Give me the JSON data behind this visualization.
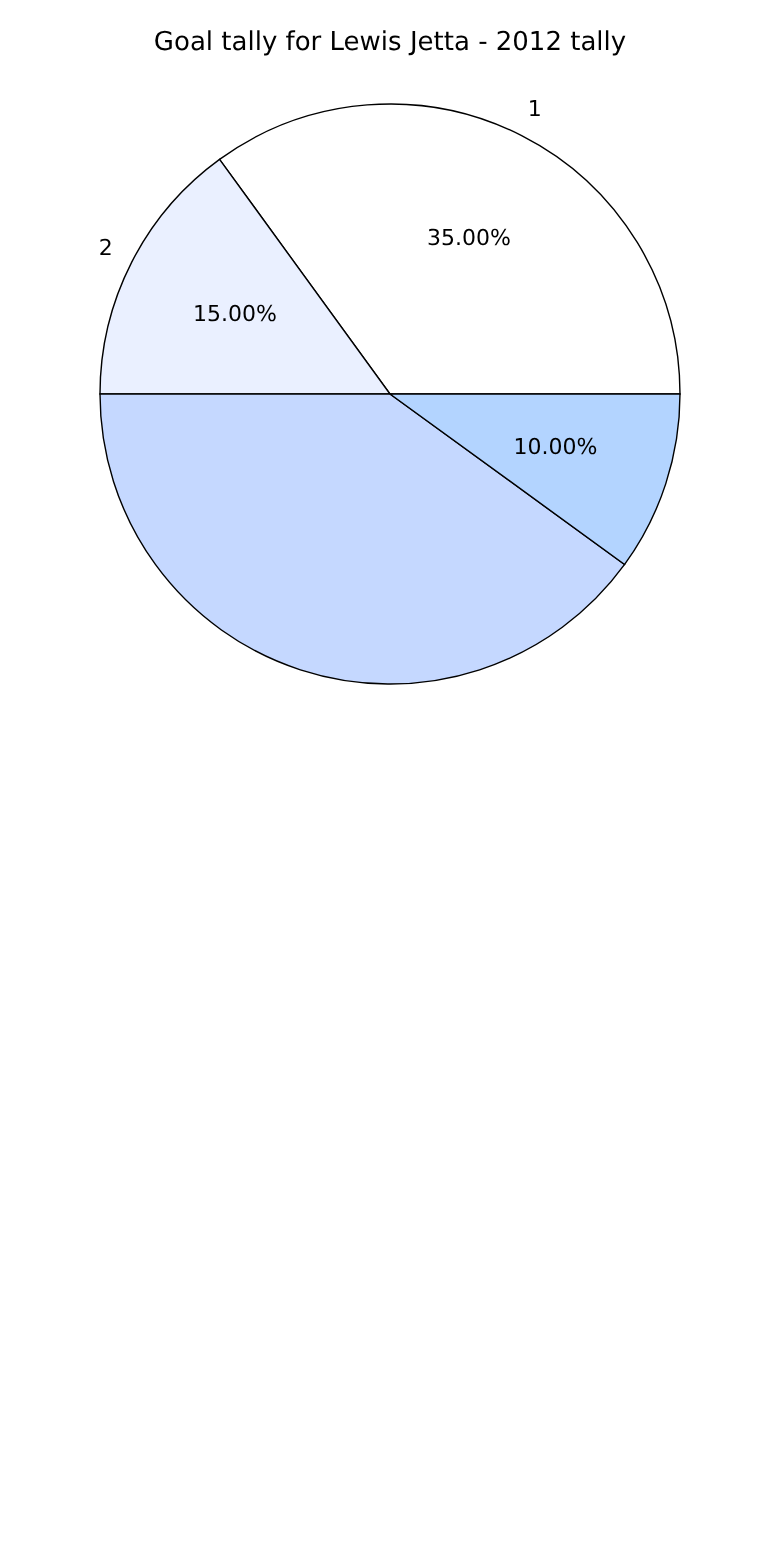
{
  "chart_data": {
    "type": "pie",
    "title": "Goal tally for Lewis Jetta - 2012 tally",
    "categories": [
      "1",
      "2",
      null,
      null
    ],
    "values": [
      35,
      15,
      40,
      10
    ],
    "value_labels": [
      "35.00%",
      "15.00%",
      null,
      "10.00%"
    ],
    "colors": [
      "#ffffff",
      "#eaf0ff",
      "#c5d8ff",
      "#b3d4ff"
    ],
    "legend": false
  }
}
